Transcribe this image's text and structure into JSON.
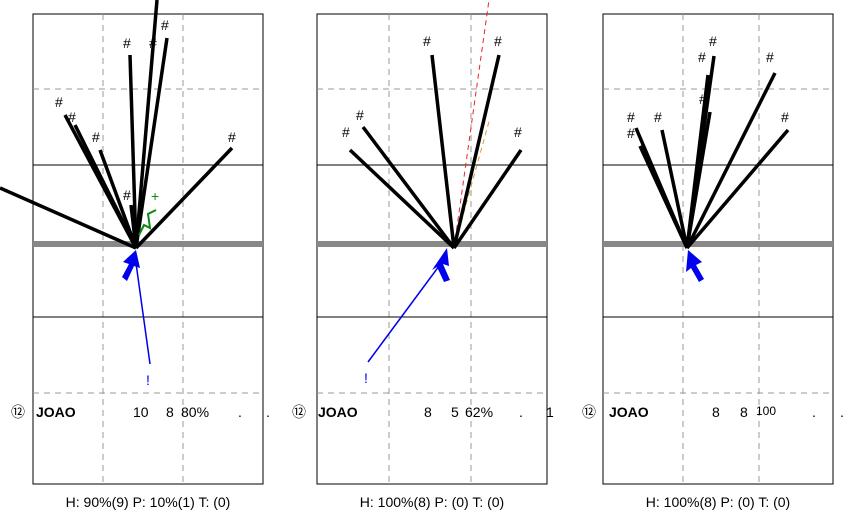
{
  "panels": [
    {
      "player_number": "⑫",
      "player_name": "JOAO",
      "stat_a": "10",
      "stat_b": "8",
      "stat_pct": "80%",
      "stat_d": ".",
      "stat_e": ".",
      "footer": "H: 90%(9)  P: 10%(1)  T: (0)",
      "hit_marker": "#",
      "green_marker": "+",
      "blue_marker": "!"
    },
    {
      "player_number": "⑫",
      "player_name": "JOAO",
      "stat_a": "8",
      "stat_b": "5",
      "stat_pct": "62%",
      "stat_d": ".",
      "stat_e": "1",
      "footer": "H: 100%(8)  P: (0)  T: (0)",
      "hit_marker": "#",
      "blue_marker": "!"
    },
    {
      "player_number": "⑫",
      "player_name": "JOAO",
      "stat_a": "8",
      "stat_b": "8",
      "stat_pct": "100",
      "stat_d": ".",
      "stat_e": ".",
      "footer": "H: 100%(8)  P: (0)  T: (0)",
      "hit_marker": "#"
    }
  ],
  "colors": {
    "shot_line": "#000000",
    "net": "#888888",
    "blue_arrow": "#0000ee",
    "green_path": "#118811",
    "red_dash": "#ee2222",
    "orange_dash": "#dd9933",
    "grid_dash": "#999999"
  }
}
